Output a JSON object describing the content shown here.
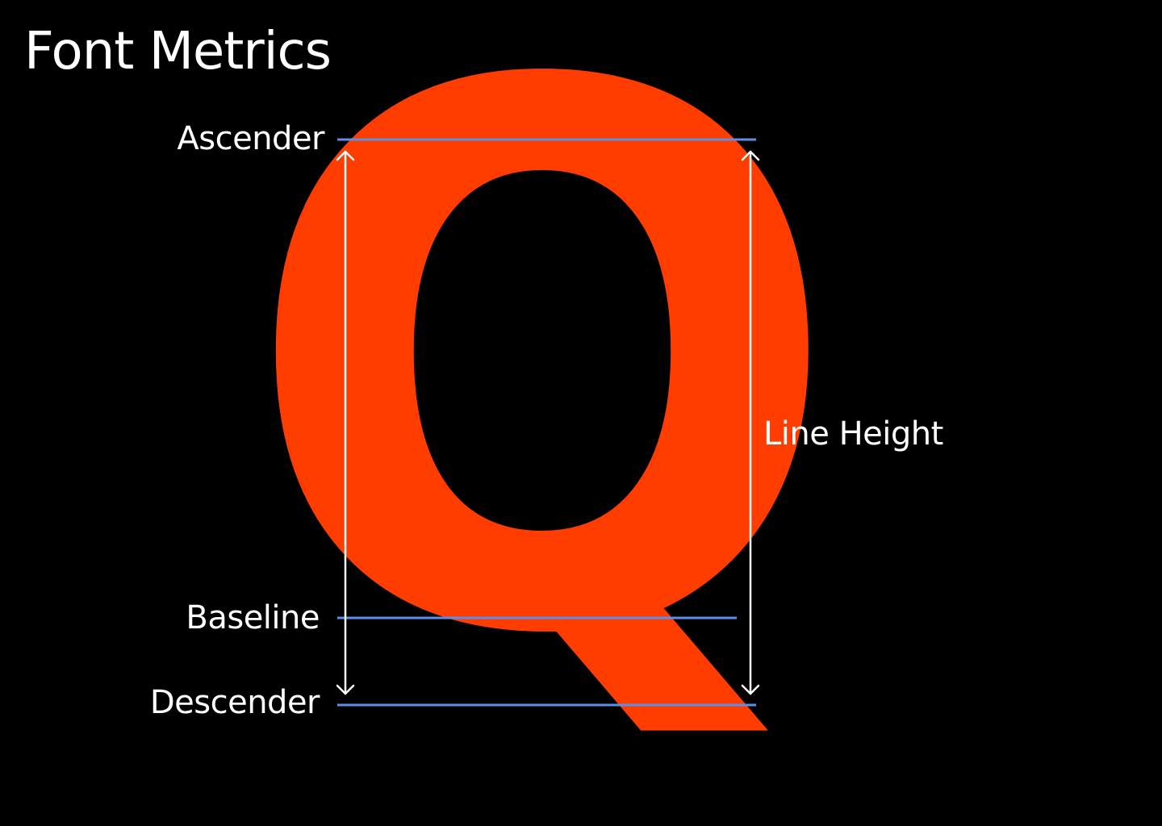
{
  "title": "Font Metrics",
  "labels": {
    "ascender": "Ascender",
    "baseline": "Baseline",
    "descender": "Descender",
    "line_height": "Line Height"
  },
  "glyph": {
    "character": "Q"
  },
  "colors": {
    "background": "#000000",
    "glyph": "#FF3D00",
    "metric_line": "#5B8FE8",
    "text": "#FFFFFF",
    "arrow": "#FFFFFF"
  },
  "icons": {
    "arrow": "double-headed-vertical-arrow"
  }
}
